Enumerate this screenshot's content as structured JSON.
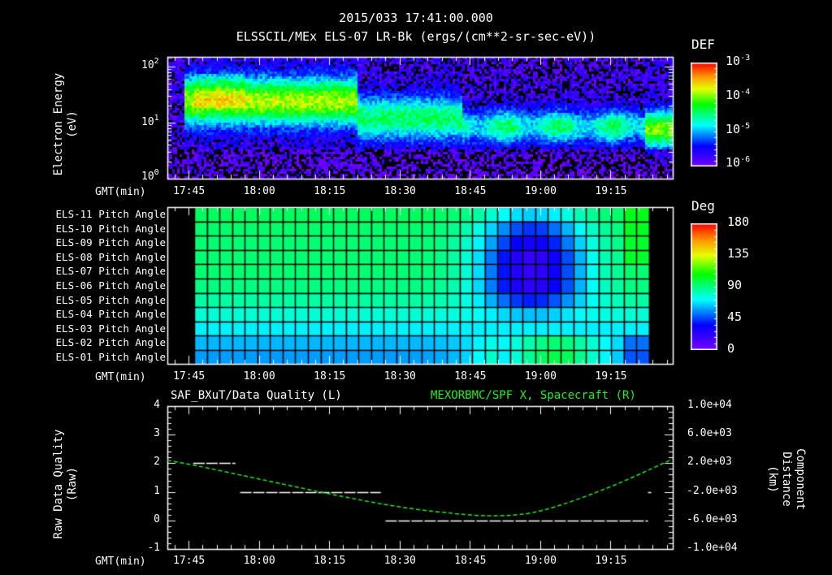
{
  "header": {
    "timestamp": "2015/033 17:41:00.000",
    "subtitle": "ELSSCIL/MEx ELS-07 LR-Bk  (ergs/(cm**2-sr-sec-eV))"
  },
  "time_axis": {
    "label": "GMT(min)",
    "ticks": [
      "17:45",
      "18:00",
      "18:15",
      "18:30",
      "18:45",
      "19:00",
      "19:15"
    ]
  },
  "panel1": {
    "ylabel_line1": "Electron Energy",
    "ylabel_line2": "(eV)",
    "yticks": [
      {
        "base": "10",
        "exp": "2"
      },
      {
        "base": "10",
        "exp": "1"
      },
      {
        "base": "10",
        "exp": "0"
      }
    ],
    "colorbar": {
      "title": "DEF",
      "ticks": [
        {
          "base": "10",
          "exp": "-3"
        },
        {
          "base": "10",
          "exp": "-4"
        },
        {
          "base": "10",
          "exp": "-5"
        },
        {
          "base": "10",
          "exp": "-6"
        }
      ]
    }
  },
  "panel2": {
    "channels": [
      "ELS-11 Pitch Angle",
      "ELS-10 Pitch Angle",
      "ELS-09 Pitch Angle",
      "ELS-08 Pitch Angle",
      "ELS-07 Pitch Angle",
      "ELS-06 Pitch Angle",
      "ELS-05 Pitch Angle",
      "ELS-04 Pitch Angle",
      "ELS-03 Pitch Angle",
      "ELS-02 Pitch Angle",
      "ELS-01 Pitch Angle"
    ],
    "colorbar": {
      "title": "Deg",
      "ticks": [
        "180",
        "135",
        "90",
        "45",
        "0"
      ]
    }
  },
  "panel3": {
    "left_title": "SAF_BXuT/Data Quality (L)",
    "right_title": "MEXORBMC/SPF X, Spacecraft (R)",
    "right_title_color": "#22ee22",
    "ylabel_line1": "Raw Data Quality",
    "ylabel_line2": "(Raw)",
    "yticks_left": [
      "4",
      "3",
      "2",
      "1",
      "0",
      "-1"
    ],
    "ylabel_r_line1": "Component Distance",
    "ylabel_r_line2": "(km)",
    "yticks_right": [
      "1.0e+04",
      "6.0e+03",
      "2.0e+03",
      "-2.0e+03",
      "-6.0e+03",
      "-1.0e+04"
    ]
  },
  "chart_data": [
    {
      "type": "heatmap",
      "title": "ELSSCIL/MEx ELS-07 LR-Bk (ergs/(cm**2-sr-sec-eV))",
      "xlabel": "GMT(min)",
      "ylabel": "Electron Energy (eV)",
      "yscale": "log",
      "ylim": [
        1,
        150
      ],
      "x_range": [
        "17:41",
        "19:29"
      ],
      "colorbar": {
        "label": "DEF",
        "scale": "log",
        "range": [
          1e-06,
          0.001
        ]
      },
      "features": [
        {
          "time": "17:45-18:20",
          "energy_eV": "10-60",
          "level": "~1e-4 (green/yellow-green)"
        },
        {
          "time": "18:20-18:40",
          "energy_eV": "6-40",
          "level": "~2e-5 (cyan)"
        },
        {
          "time": "18:47-19:20",
          "energy_eV": "5-20",
          "level": "~1e-5-3e-5 (cyan) patchy"
        },
        {
          "time": "19:22-19:29",
          "energy_eV": "5-20",
          "level": "~5e-5 (green)"
        },
        {
          "time": "all",
          "energy_eV": "1-4",
          "level": "<=1e-6 (purple/black)"
        }
      ]
    },
    {
      "type": "heatmap",
      "xlabel": "GMT(min)",
      "categories": [
        "ELS-11",
        "ELS-10",
        "ELS-09",
        "ELS-08",
        "ELS-07",
        "ELS-06",
        "ELS-05",
        "ELS-04",
        "ELS-03",
        "ELS-02",
        "ELS-01"
      ],
      "colorbar": {
        "label": "Deg",
        "range": [
          0,
          180
        ],
        "ticks": [
          0,
          45,
          90,
          135,
          180
        ]
      },
      "x_range": [
        "17:41",
        "19:29"
      ],
      "data_start": "17:46",
      "data_end": "19:24",
      "baseline_deg_by_channel": [
        95,
        93,
        92,
        92,
        92,
        90,
        85,
        78,
        70,
        62,
        58
      ],
      "event": {
        "time": "18:47-19:22",
        "description": "Pitch angles of ELS-06..ELS-09 drop to ~20 deg around 18:55-19:05; ELS-01/02 rise to ~120 deg"
      }
    },
    {
      "type": "line",
      "title": "SAF_BXuT/Data Quality (L) ; MEXORBMC/SPF X, Spacecraft (R)",
      "xlabel": "GMT(min)",
      "ylabel": "Raw Data Quality (Raw)",
      "ylim": [
        -1,
        4
      ],
      "y2label": "Component Distance (km)",
      "y2lim": [
        -10000,
        10000
      ],
      "series": [
        {
          "name": "SAF_BXuT/Data Quality",
          "axis": "left",
          "color": "#ffffff",
          "segments": [
            {
              "x": [
                "17:46",
                "17:55"
              ],
              "y": 2
            },
            {
              "x": [
                "17:56",
                "18:26"
              ],
              "y": 1
            },
            {
              "x": [
                "18:27",
                "19:23"
              ],
              "y": 0
            },
            {
              "x": [
                "19:23",
                "19:23"
              ],
              "y": 1
            }
          ]
        },
        {
          "name": "MEXORBMC/SPF X, Spacecraft",
          "axis": "right",
          "color": "#22ee22",
          "x": [
            "17:41",
            "17:45",
            "18:00",
            "18:15",
            "18:30",
            "18:45",
            "18:52",
            "19:00",
            "19:15",
            "19:29"
          ],
          "y": [
            2400,
            1900,
            -200,
            -2300,
            -4200,
            -5300,
            -5400,
            -4900,
            -1400,
            2600
          ]
        }
      ]
    }
  ]
}
